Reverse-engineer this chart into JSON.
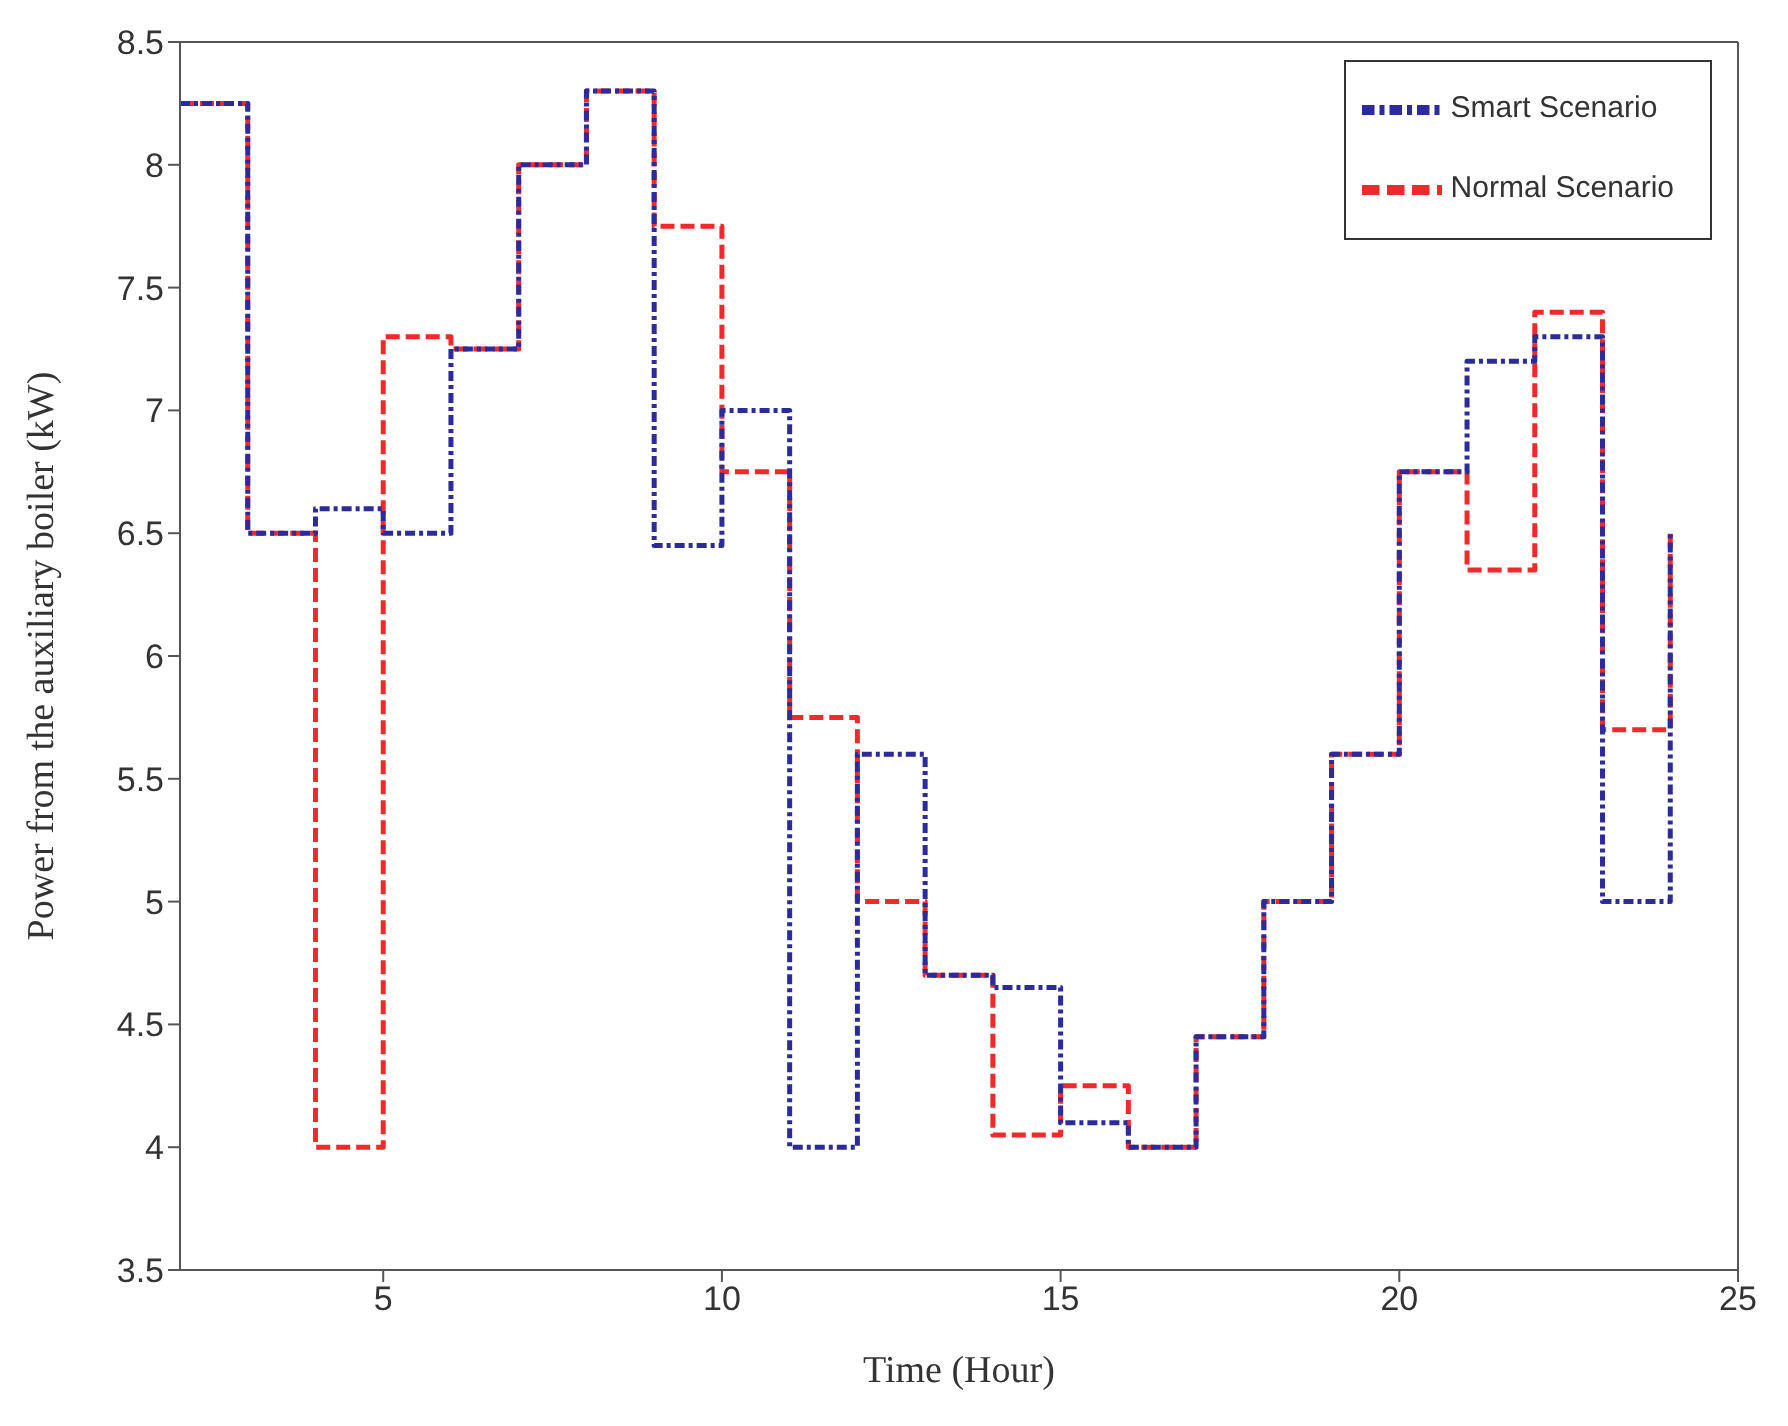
{
  "chart_data": {
    "type": "step",
    "xlabel": "Time (Hour)",
    "ylabel": "Power from the auxiliary boiler (kW)",
    "x": [
      2,
      3,
      4,
      5,
      6,
      7,
      8,
      9,
      10,
      11,
      12,
      13,
      14,
      15,
      16,
      17,
      18,
      19,
      20,
      21,
      22,
      23,
      24
    ],
    "series": [
      {
        "name": "Smart Scenario",
        "color": "#2b2b9c",
        "line_style": "dashdot",
        "values": [
          8.25,
          6.5,
          6.6,
          6.5,
          7.25,
          8.0,
          8.3,
          6.45,
          7.0,
          4.0,
          5.6,
          4.7,
          4.65,
          4.1,
          4.0,
          4.45,
          5.0,
          5.6,
          6.75,
          7.2,
          7.3,
          5.0,
          6.5
        ]
      },
      {
        "name": "Normal Scenario",
        "color": "#f02a2a",
        "line_style": "dashed",
        "values": [
          8.25,
          6.5,
          4.0,
          7.3,
          7.25,
          8.0,
          8.3,
          7.75,
          6.75,
          5.75,
          5.0,
          4.7,
          4.05,
          4.25,
          4.0,
          4.45,
          5.0,
          5.6,
          6.75,
          6.35,
          7.4,
          5.7,
          6.5
        ]
      }
    ],
    "xlim": [
      2,
      25
    ],
    "xticks": [
      5,
      10,
      15,
      20,
      25
    ],
    "ylim": [
      3.5,
      8.5
    ],
    "yticks": [
      3.5,
      4,
      4.5,
      5,
      5.5,
      6,
      6.5,
      7,
      7.5,
      8,
      8.5
    ],
    "legend": "top right",
    "marker": "none"
  }
}
